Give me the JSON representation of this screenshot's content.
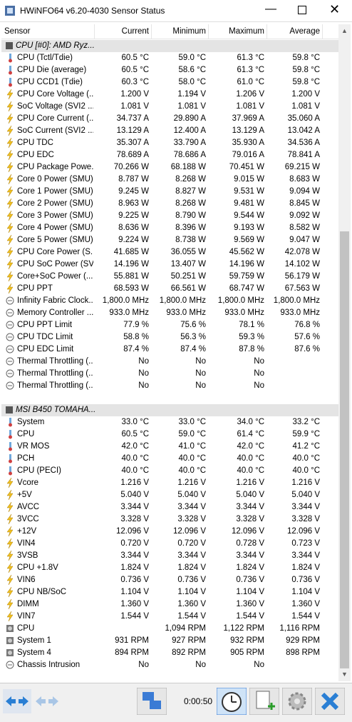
{
  "window": {
    "title": "HWiNFO64 v6.20-4030 Sensor Status"
  },
  "table": {
    "columns": [
      "Sensor",
      "Current",
      "Minimum",
      "Maximum",
      "Average"
    ],
    "groups": [
      {
        "title": "CPU [#0]: AMD Ryz...",
        "rows": [
          [
            "CPU (Tctl/Tdie)",
            "60.5 °C",
            "59.0 °C",
            "61.3 °C",
            "59.8 °C"
          ],
          [
            "CPU Die (average)",
            "60.5 °C",
            "58.6 °C",
            "61.3 °C",
            "59.8 °C"
          ],
          [
            "CPU CCD1 (Tdie)",
            "60.3 °C",
            "58.0 °C",
            "61.0 °C",
            "59.8 °C"
          ],
          [
            "CPU Core Voltage (...",
            "1.200 V",
            "1.194 V",
            "1.206 V",
            "1.200 V"
          ],
          [
            "SoC Voltage (SVI2 ...",
            "1.081 V",
            "1.081 V",
            "1.081 V",
            "1.081 V"
          ],
          [
            "CPU Core Current (...",
            "34.737 A",
            "29.890 A",
            "37.969 A",
            "35.060 A"
          ],
          [
            "SoC Current (SVI2 ...",
            "13.129 A",
            "12.400 A",
            "13.129 A",
            "13.042 A"
          ],
          [
            "CPU TDC",
            "35.307 A",
            "33.790 A",
            "35.930 A",
            "34.536 A"
          ],
          [
            "CPU EDC",
            "78.689 A",
            "78.686 A",
            "79.016 A",
            "78.841 A"
          ],
          [
            "CPU Package Powe...",
            "70.266 W",
            "68.188 W",
            "70.451 W",
            "69.215 W"
          ],
          [
            "Core 0 Power (SMU)",
            "8.787 W",
            "8.268 W",
            "9.015 W",
            "8.683 W"
          ],
          [
            "Core 1 Power (SMU)",
            "9.245 W",
            "8.827 W",
            "9.531 W",
            "9.094 W"
          ],
          [
            "Core 2 Power (SMU)",
            "8.963 W",
            "8.268 W",
            "9.481 W",
            "8.845 W"
          ],
          [
            "Core 3 Power (SMU)",
            "9.225 W",
            "8.790 W",
            "9.544 W",
            "9.092 W"
          ],
          [
            "Core 4 Power (SMU)",
            "8.636 W",
            "8.396 W",
            "9.193 W",
            "8.582 W"
          ],
          [
            "Core 5 Power (SMU)",
            "9.224 W",
            "8.738 W",
            "9.569 W",
            "9.047 W"
          ],
          [
            "CPU Core Power (S...",
            "41.685 W",
            "36.055 W",
            "45.562 W",
            "42.078 W"
          ],
          [
            "CPU SoC Power (SV...",
            "14.196 W",
            "13.407 W",
            "14.196 W",
            "14.102 W"
          ],
          [
            "Core+SoC Power (...",
            "55.881 W",
            "50.251 W",
            "59.759 W",
            "56.179 W"
          ],
          [
            "CPU PPT",
            "68.593 W",
            "66.561 W",
            "68.747 W",
            "67.563 W"
          ],
          [
            "Infinity Fabric Clock...",
            "1,800.0 MHz",
            "1,800.0 MHz",
            "1,800.0 MHz",
            "1,800.0 MHz"
          ],
          [
            "Memory Controller ...",
            "933.0 MHz",
            "933.0 MHz",
            "933.0 MHz",
            "933.0 MHz"
          ],
          [
            "CPU PPT Limit",
            "77.9 %",
            "75.6 %",
            "78.1 %",
            "76.8 %"
          ],
          [
            "CPU TDC Limit",
            "58.8 %",
            "56.3 %",
            "59.3 %",
            "57.6 %"
          ],
          [
            "CPU EDC Limit",
            "87.4 %",
            "87.4 %",
            "87.8 %",
            "87.6 %"
          ],
          [
            "Thermal Throttling (...",
            "No",
            "No",
            "No",
            null
          ],
          [
            "Thermal Throttling (...",
            "No",
            "No",
            "No",
            null
          ],
          [
            "Thermal Throttling (...",
            "No",
            "No",
            "No",
            null
          ]
        ]
      },
      {
        "title": "MSI B450 TOMAHA...",
        "rows": [
          [
            "System",
            "33.0 °C",
            "33.0 °C",
            "34.0 °C",
            "33.2 °C"
          ],
          [
            "CPU",
            "60.5 °C",
            "59.0 °C",
            "61.4 °C",
            "59.9 °C"
          ],
          [
            "VR MOS",
            "42.0 °C",
            "41.0 °C",
            "42.0 °C",
            "41.2 °C"
          ],
          [
            "PCH",
            "40.0 °C",
            "40.0 °C",
            "40.0 °C",
            "40.0 °C"
          ],
          [
            "CPU (PECI)",
            "40.0 °C",
            "40.0 °C",
            "40.0 °C",
            "40.0 °C"
          ],
          [
            "Vcore",
            "1.216 V",
            "1.216 V",
            "1.216 V",
            "1.216 V"
          ],
          [
            "+5V",
            "5.040 V",
            "5.040 V",
            "5.040 V",
            "5.040 V"
          ],
          [
            "AVCC",
            "3.344 V",
            "3.344 V",
            "3.344 V",
            "3.344 V"
          ],
          [
            "3VCC",
            "3.328 V",
            "3.328 V",
            "3.328 V",
            "3.328 V"
          ],
          [
            "+12V",
            "12.096 V",
            "12.096 V",
            "12.096 V",
            "12.096 V"
          ],
          [
            "VIN4",
            "0.720 V",
            "0.720 V",
            "0.728 V",
            "0.723 V"
          ],
          [
            "3VSB",
            "3.344 V",
            "3.344 V",
            "3.344 V",
            "3.344 V"
          ],
          [
            "CPU +1.8V",
            "1.824 V",
            "1.824 V",
            "1.824 V",
            "1.824 V"
          ],
          [
            "VIN6",
            "0.736 V",
            "0.736 V",
            "0.736 V",
            "0.736 V"
          ],
          [
            "CPU NB/SoC",
            "1.104 V",
            "1.104 V",
            "1.104 V",
            "1.104 V"
          ],
          [
            "DIMM",
            "1.360 V",
            "1.360 V",
            "1.360 V",
            "1.360 V"
          ],
          [
            "VIN7",
            "1.544 V",
            "1.544 V",
            "1.544 V",
            "1.544 V"
          ],
          [
            "CPU",
            null,
            "1,094 RPM",
            "1,122 RPM",
            "1,116 RPM"
          ],
          [
            "System 1",
            "931 RPM",
            "927 RPM",
            "932 RPM",
            "929 RPM"
          ],
          [
            "System 4",
            "894 RPM",
            "892 RPM",
            "905 RPM",
            "898 RPM"
          ],
          [
            "Chassis Intrusion",
            "No",
            "No",
            "No",
            null
          ]
        ]
      }
    ]
  },
  "footer": {
    "timer": "0:00:50"
  }
}
